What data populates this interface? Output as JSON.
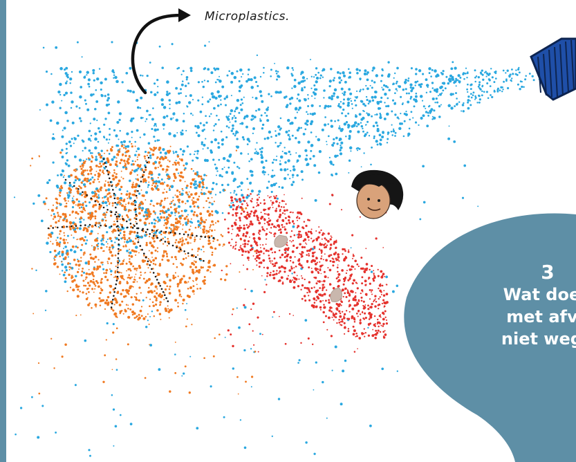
{
  "annotation": {
    "label": "Microplastics."
  },
  "speech_bubble": {
    "number": "3",
    "lines": [
      "Wat doen",
      "met afva",
      "niet wegg"
    ]
  },
  "colors": {
    "left_stripe": "#5e8fa6",
    "spray_blue": "#2aa8e0",
    "ball_orange": "#f07a22",
    "person_red": "#e5322d",
    "bottle_cap": "#1f4fa8",
    "skin": "#d9a27a",
    "hair": "#151515",
    "bubble": "#5e8fa6",
    "hand": "#c9b7ad"
  },
  "icons": {
    "arrow": "curved-arrow-icon",
    "bottle": "bottle-cap-icon",
    "ball": "basketball-icon",
    "person": "person-icon"
  }
}
